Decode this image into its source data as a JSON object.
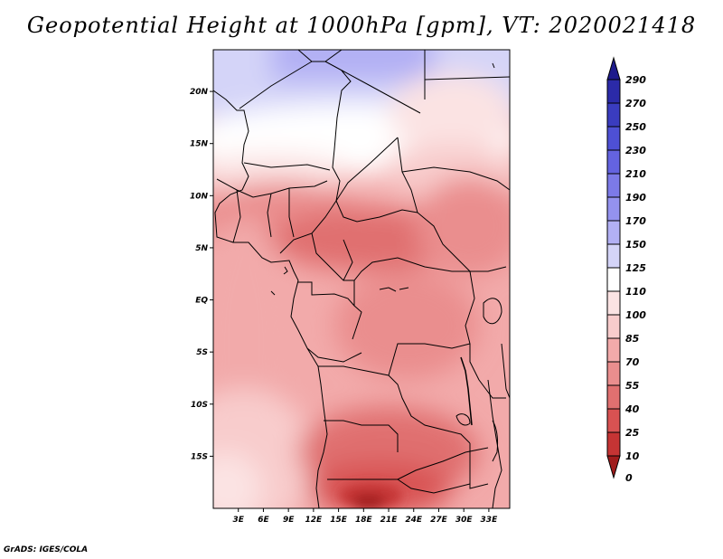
{
  "title": "Geopotential Height at 1000hPa [gpm], VT: 2020021418",
  "credit": "GrADS: IGES/COLA",
  "map": {
    "region": "Central and Southern Africa",
    "variable": "Geopotential Height",
    "level": "1000hPa",
    "units": "gpm",
    "valid_time": "2020021418",
    "lon_range": [
      0,
      35.5
    ],
    "lat_range": [
      -20,
      24
    ],
    "lat_ticks": [
      {
        "label": "20N",
        "value": 20
      },
      {
        "label": "15N",
        "value": 15
      },
      {
        "label": "10N",
        "value": 10
      },
      {
        "label": "5N",
        "value": 5
      },
      {
        "label": "EQ",
        "value": 0
      },
      {
        "label": "5S",
        "value": -5
      },
      {
        "label": "10S",
        "value": -10
      },
      {
        "label": "15S",
        "value": -15
      }
    ],
    "lon_ticks": [
      {
        "label": "3E",
        "value": 3
      },
      {
        "label": "6E",
        "value": 6
      },
      {
        "label": "9E",
        "value": 9
      },
      {
        "label": "12E",
        "value": 12
      },
      {
        "label": "15E",
        "value": 15
      },
      {
        "label": "18E",
        "value": 18
      },
      {
        "label": "21E",
        "value": 21
      },
      {
        "label": "24E",
        "value": 24
      },
      {
        "label": "27E",
        "value": 27
      },
      {
        "label": "30E",
        "value": 30
      },
      {
        "label": "33E",
        "value": 33
      }
    ]
  },
  "colorbar": {
    "levels": [
      {
        "label": "290",
        "color": "#1e1b8c"
      },
      {
        "label": "270",
        "color": "#2b2aa8"
      },
      {
        "label": "250",
        "color": "#3a3cbf"
      },
      {
        "label": "230",
        "color": "#4e50d4"
      },
      {
        "label": "210",
        "color": "#6463e0"
      },
      {
        "label": "190",
        "color": "#7c7ae8"
      },
      {
        "label": "170",
        "color": "#9492ef"
      },
      {
        "label": "150",
        "color": "#b2b0f4"
      },
      {
        "label": "125",
        "color": "#d4d4f8"
      },
      {
        "label": "110",
        "color": "#ffffff"
      },
      {
        "label": "100",
        "color": "#fbe3e3"
      },
      {
        "label": "85",
        "color": "#f8cccc"
      },
      {
        "label": "70",
        "color": "#f2aaaa"
      },
      {
        "label": "55",
        "color": "#ea8e8e"
      },
      {
        "label": "40",
        "color": "#e07070"
      },
      {
        "label": "25",
        "color": "#d85252"
      },
      {
        "label": "10",
        "color": "#c53434"
      },
      {
        "label": "0",
        "color": "#a01c1c"
      }
    ]
  }
}
